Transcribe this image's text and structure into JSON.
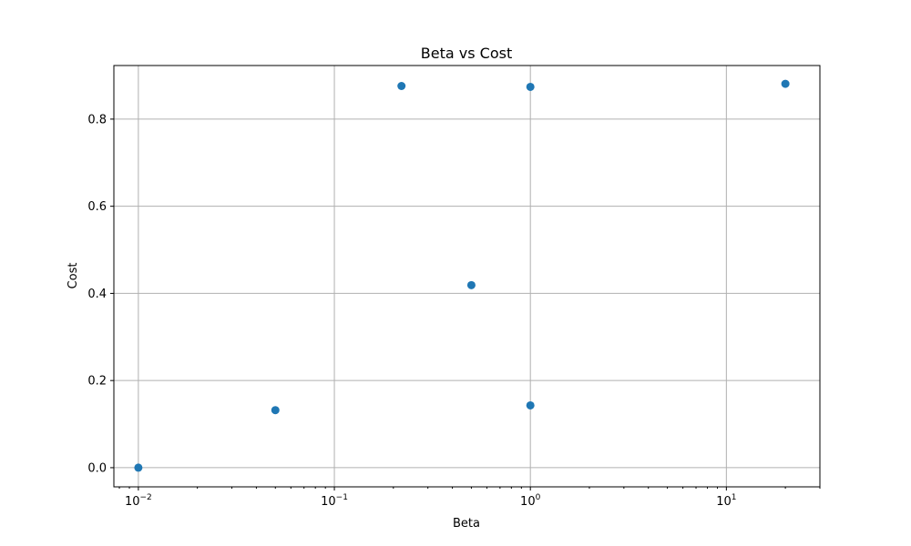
{
  "chart_data": {
    "type": "scatter",
    "title": "Beta vs Cost",
    "xlabel": "Beta",
    "ylabel": "Cost",
    "xscale": "log",
    "xlim": [
      0.0075,
      30
    ],
    "ylim": [
      -0.044,
      0.923
    ],
    "grid": true,
    "x_ticks": [
      {
        "value": 0.01,
        "base": "10",
        "exp": "−2"
      },
      {
        "value": 0.1,
        "base": "10",
        "exp": "−1"
      },
      {
        "value": 1,
        "base": "10",
        "exp": "0"
      },
      {
        "value": 10,
        "base": "10",
        "exp": "1"
      }
    ],
    "y_ticks": [
      {
        "value": 0.0,
        "label": "0.0"
      },
      {
        "value": 0.2,
        "label": "0.2"
      },
      {
        "value": 0.4,
        "label": "0.4"
      },
      {
        "value": 0.6,
        "label": "0.6"
      },
      {
        "value": 0.8,
        "label": "0.8"
      }
    ],
    "marker_color": "#1f77b4",
    "points": [
      {
        "x": 0.01,
        "y": 0.0
      },
      {
        "x": 0.05,
        "y": 0.132
      },
      {
        "x": 0.22,
        "y": 0.876
      },
      {
        "x": 0.5,
        "y": 0.419
      },
      {
        "x": 1.0,
        "y": 0.874
      },
      {
        "x": 1.0,
        "y": 0.143
      },
      {
        "x": 20.0,
        "y": 0.881
      }
    ]
  }
}
